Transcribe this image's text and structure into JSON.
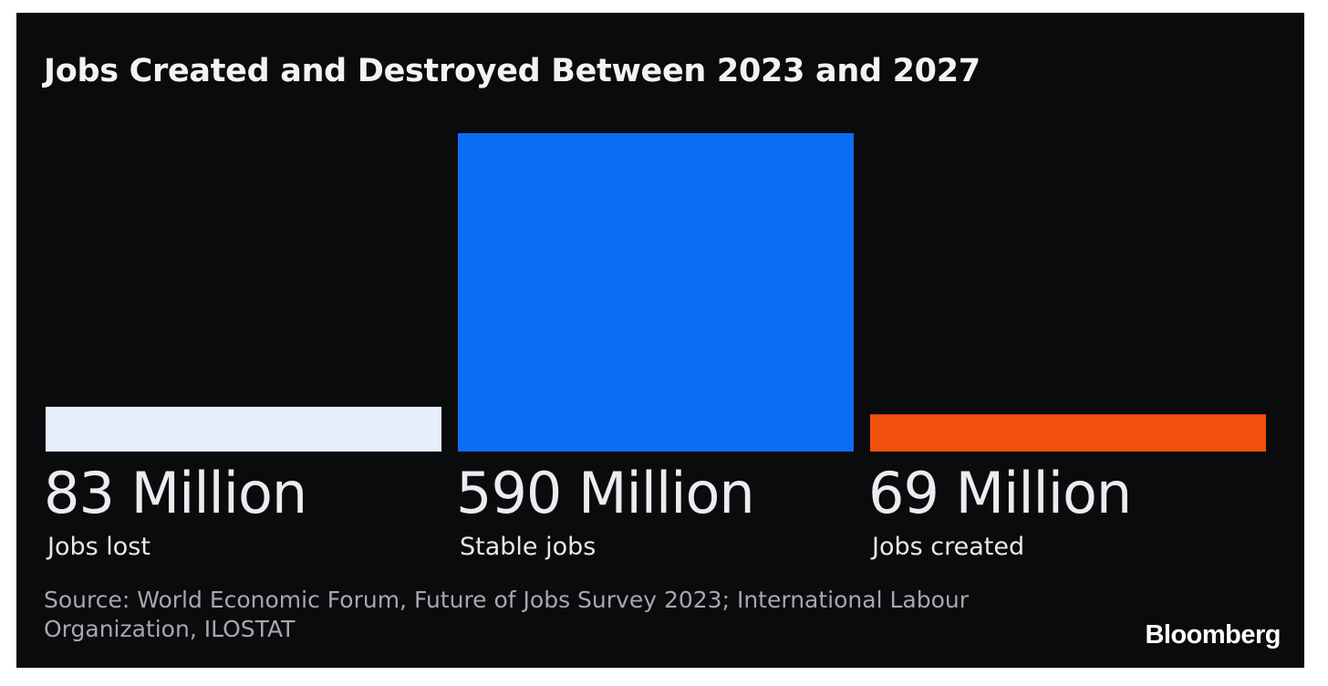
{
  "chart_data": {
    "type": "bar",
    "title": "Jobs Created and Destroyed Between 2023 and 2027",
    "unit": "Million",
    "categories": [
      "Jobs lost",
      "Stable jobs",
      "Jobs created"
    ],
    "values": [
      83,
      590,
      69
    ],
    "value_labels": [
      "83 Million",
      "590 Million",
      "69 Million"
    ],
    "colors": [
      "#e6effb",
      "#0b6ff5",
      "#f24f0c"
    ],
    "ylim": [
      0,
      590
    ],
    "grid": false,
    "legend": "none"
  },
  "source": "Source: World Economic Forum, Future of Jobs Survey 2023; International Labour Organization, ILOSTAT",
  "brand": "Bloomberg",
  "colors": {
    "background": "#0a0b0d",
    "text": "#f2f3f5",
    "source_text": "#a5a8ad"
  }
}
